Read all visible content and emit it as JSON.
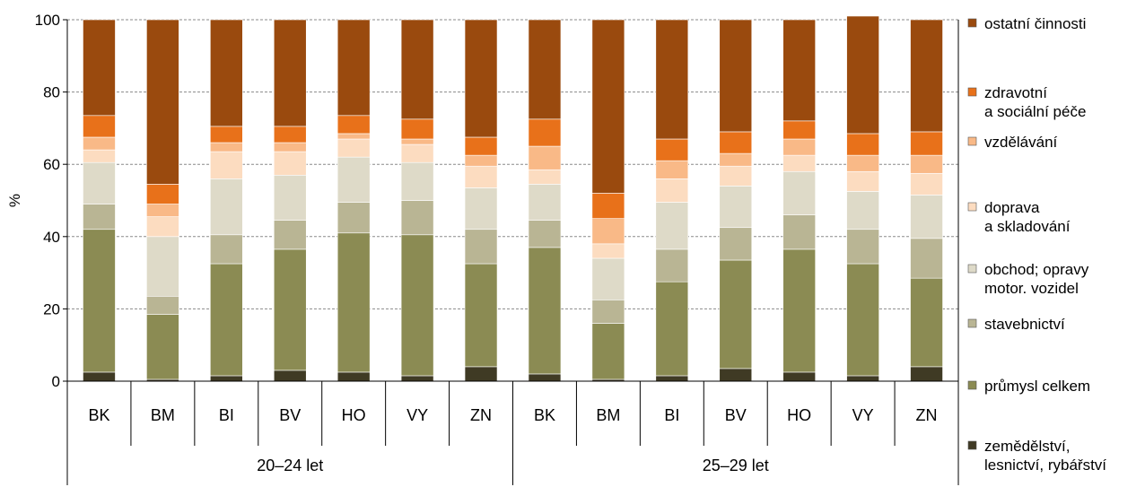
{
  "chart_data": {
    "type": "bar",
    "stacked": true,
    "ylabel": "%",
    "ylim": [
      0,
      100
    ],
    "yticks": [
      0,
      20,
      40,
      60,
      80,
      100
    ],
    "grid": "horizontal dashed",
    "legend_position": "right",
    "groups": [
      {
        "label": "20–24 let",
        "categories": [
          "BK",
          "BM",
          "BI",
          "BV",
          "HO",
          "VY",
          "ZN"
        ]
      },
      {
        "label": "25–29 let",
        "categories": [
          "BK",
          "BM",
          "BI",
          "BV",
          "HO",
          "VY",
          "ZN"
        ]
      }
    ],
    "series": [
      {
        "name": "zemědělství, lesnictví, rybářství",
        "color": "#3f3a24",
        "values": [
          2.5,
          0.5,
          1.5,
          3.0,
          2.5,
          1.5,
          4.0,
          2.0,
          0.5,
          1.5,
          3.5,
          2.5,
          1.5,
          4.0
        ]
      },
      {
        "name": "průmysl celkem",
        "color": "#8b8b53",
        "values": [
          39.5,
          18.0,
          31.0,
          33.5,
          38.5,
          39.0,
          28.5,
          35.0,
          15.5,
          26.0,
          30.0,
          34.0,
          31.0,
          24.5
        ]
      },
      {
        "name": "stavebnictví",
        "color": "#b9b594",
        "values": [
          7.0,
          5.0,
          8.0,
          8.0,
          8.5,
          9.5,
          9.5,
          7.5,
          6.5,
          9.0,
          9.0,
          9.5,
          9.5,
          11.0
        ]
      },
      {
        "name": "obchod; opravy motor. vozidel",
        "color": "#dedac8",
        "values": [
          11.5,
          16.5,
          15.5,
          12.5,
          12.5,
          10.5,
          11.5,
          10.0,
          11.5,
          13.0,
          11.5,
          12.0,
          10.5,
          12.0
        ]
      },
      {
        "name": "doprava a skladování",
        "color": "#fcdcc0",
        "values": [
          3.5,
          5.5,
          7.5,
          6.5,
          5.0,
          5.0,
          6.0,
          4.0,
          4.0,
          6.5,
          5.5,
          4.5,
          5.5,
          6.0
        ]
      },
      {
        "name": "vzdělávání",
        "color": "#f9b987",
        "values": [
          3.5,
          3.5,
          2.5,
          2.5,
          1.5,
          1.5,
          3.0,
          6.5,
          7.0,
          5.0,
          3.5,
          4.5,
          4.5,
          5.0
        ]
      },
      {
        "name": "zdravotní a sociální péče",
        "color": "#e8711a",
        "values": [
          6.0,
          5.5,
          4.5,
          4.5,
          5.0,
          5.5,
          5.0,
          7.5,
          7.0,
          6.0,
          6.0,
          5.0,
          6.0,
          6.5
        ]
      },
      {
        "name": "ostatní činnosti",
        "color": "#9a4a0e",
        "values": [
          26.5,
          45.5,
          29.5,
          29.5,
          26.5,
          27.5,
          32.5,
          27.5,
          48.0,
          33.0,
          31.0,
          28.0,
          32.5,
          31.0
        ]
      }
    ],
    "legend": [
      {
        "lines": [
          "ostatní činnosti"
        ]
      },
      {
        "lines": [
          "zdravotní",
          "a sociální péče"
        ]
      },
      {
        "lines": [
          "vzdělávání"
        ]
      },
      {
        "lines": [
          "doprava",
          "a skladování"
        ]
      },
      {
        "lines": [
          "obchod; opravy",
          "motor. vozidel"
        ]
      },
      {
        "lines": [
          "stavebnictví"
        ]
      },
      {
        "lines": [
          "průmysl celkem"
        ]
      },
      {
        "lines": [
          "zemědělství,",
          "lesnictví, rybářství"
        ]
      }
    ]
  }
}
